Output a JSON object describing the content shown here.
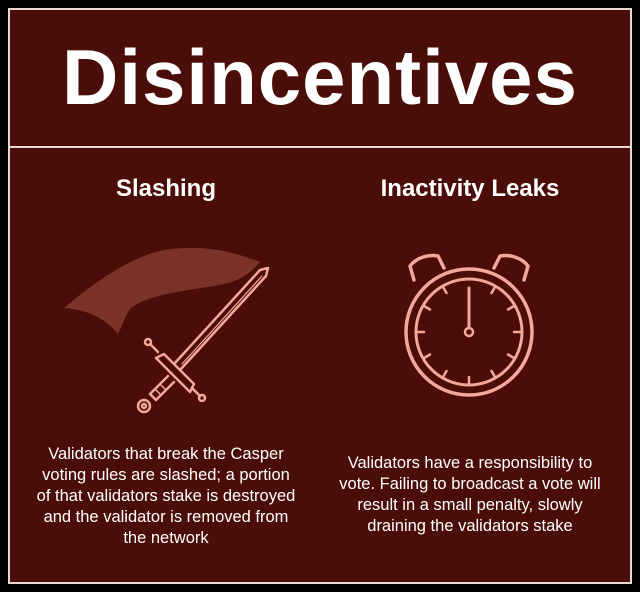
{
  "title": "Disincentives",
  "columns": [
    {
      "heading": "Slashing",
      "icon": "flag-sword-icon",
      "description": "Validators that break the Casper voting rules are slashed; a portion of that validators stake is destroyed and the validator is removed from the network"
    },
    {
      "heading": "Inactivity Leaks",
      "icon": "stopwatch-icon",
      "description": "Validators have a responsibility to vote. Failing to broadcast a vote will result in a small penalty, slowly draining the validators stake"
    }
  ],
  "colors": {
    "background": "#4b0d07",
    "border": "#e8d8d4",
    "icon_stroke": "#f4a79b",
    "flag_fill": "#7a3229",
    "text": "#ffffff"
  }
}
